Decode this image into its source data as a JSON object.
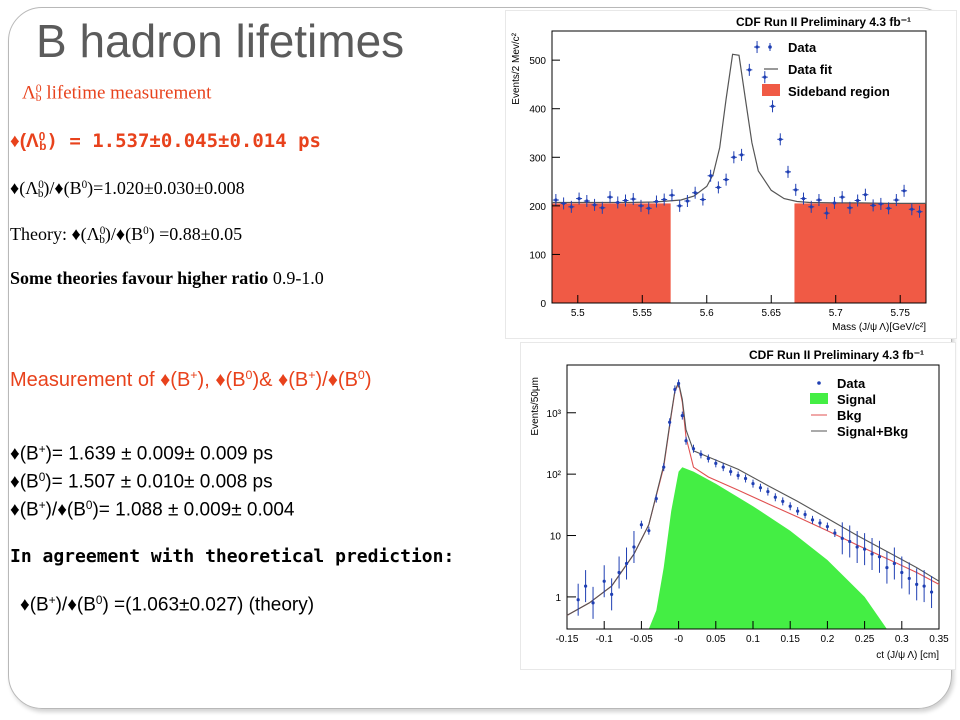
{
  "slide": {
    "title": "B hadron lifetimes",
    "g": "♦",
    "L": "Λ",
    "pm": "±",
    "lambda_heading": {
      "sym": "Λ",
      "sub": "0",
      "subb": "b",
      "text": " lifetime measurement"
    },
    "tau_lambda": {
      "prefix": "(",
      "sub_b": "b",
      "suffix": ") = 1.537±0.045±0.014 ps"
    },
    "ratio_line": {
      "p1": "(",
      "p2": ")/",
      "p3": "(B",
      "p4": ")=1.020±0.030±0.008"
    },
    "theory_line": {
      "lead": "Theory: ",
      "p1": "(",
      "p2": ")/",
      "p3": "(B",
      "p4": ") =0.88±0.05"
    },
    "some_theories": {
      "bold": "Some theories favour higher ratio",
      "value": " 0.9-1.0"
    },
    "measurement_line": {
      "a": "Measurement of ",
      "b": "(B",
      "c": "), ",
      "d": "(B",
      "e": ")& ",
      "f": "(B",
      "g": ")/",
      "h": "(B",
      "i": ")"
    },
    "bplus_line": {
      "a": "(B",
      "b": ")= 1.639 ± 0.009± 0.009 ps"
    },
    "b0_line": {
      "a": "(B",
      "b": ")= 1.507 ± 0.010± 0.008 ps"
    },
    "ratio_b_line": {
      "a": "(B",
      "b": ")/",
      "c": "(B",
      "d": ")= 1.088 ± 0.009± 0.004"
    },
    "agreement": "In agreement with theoretical prediction:",
    "theory_b_line": {
      "a": "(B",
      "b": ")/",
      "c": "(B",
      "d": ") =(1.063±0.027) (theory)"
    },
    "plus": "+",
    "zero": "0"
  },
  "chart_data": [
    {
      "type": "scatter",
      "title": "CDF Run II Preliminary 4.3 fb⁻¹",
      "xlabel": "Mass (J/ψ Λ)[GeV/c²]",
      "ylabel": "Events/2 Mev/c²",
      "xlim": [
        5.48,
        5.77
      ],
      "ylim": [
        0,
        560
      ],
      "xticks": [
        5.5,
        5.55,
        5.6,
        5.65,
        5.7,
        5.75
      ],
      "yticks": [
        0,
        100,
        200,
        300,
        400,
        500
      ],
      "grid": false,
      "legend_position": "top-right",
      "legend": [
        "Data",
        "Data fit",
        "Sideband region"
      ],
      "sideband_regions": [
        [
          5.48,
          5.572
        ],
        [
          5.668,
          5.77
        ]
      ],
      "sideband_level": 205,
      "series": [
        {
          "name": "Data",
          "x": [
            5.483,
            5.489,
            5.495,
            5.501,
            5.507,
            5.513,
            5.519,
            5.525,
            5.531,
            5.537,
            5.543,
            5.549,
            5.555,
            5.561,
            5.567,
            5.573,
            5.579,
            5.585,
            5.591,
            5.597,
            5.603,
            5.609,
            5.615,
            5.621,
            5.627,
            5.633,
            5.639,
            5.645,
            5.651,
            5.657,
            5.663,
            5.669,
            5.675,
            5.681,
            5.687,
            5.693,
            5.699,
            5.705,
            5.711,
            5.717,
            5.723,
            5.729,
            5.735,
            5.741,
            5.747,
            5.753,
            5.759,
            5.765
          ],
          "y": [
            212,
            205,
            198,
            215,
            210,
            202,
            196,
            218,
            207,
            211,
            214,
            200,
            195,
            209,
            213,
            222,
            200,
            210,
            227,
            213,
            262,
            238,
            254,
            300,
            305,
            480,
            527,
            465,
            405,
            337,
            270,
            233,
            215,
            198,
            212,
            185,
            206,
            218,
            196,
            211,
            223,
            201,
            204,
            195,
            212,
            231,
            193,
            188
          ]
        },
        {
          "name": "Data fit",
          "x": [
            5.48,
            5.5,
            5.52,
            5.54,
            5.56,
            5.58,
            5.59,
            5.6,
            5.605,
            5.61,
            5.615,
            5.62,
            5.625,
            5.63,
            5.635,
            5.64,
            5.65,
            5.66,
            5.67,
            5.68,
            5.7,
            5.72,
            5.74,
            5.77
          ],
          "y": [
            207,
            207,
            207,
            207,
            208,
            212,
            220,
            240,
            265,
            320,
            420,
            512,
            510,
            420,
            330,
            272,
            232,
            215,
            209,
            207,
            206,
            206,
            205,
            205
          ]
        }
      ]
    },
    {
      "type": "scatter",
      "title": "CDF Run II Preliminary 4.3 fb⁻¹",
      "xlabel": "ct (J/ψ Λ) [cm]",
      "ylabel": "Events/50μm",
      "xlim": [
        -0.15,
        0.35
      ],
      "ylim": [
        0.3,
        6000
      ],
      "yscale": "log",
      "xticks": [
        -0.15,
        -0.1,
        -0.05,
        -0.0,
        0.05,
        0.1,
        0.15,
        0.2,
        0.25,
        0.3,
        0.35
      ],
      "xtick_labels": [
        "-0.15",
        "-0.1",
        "-0.05",
        "-0",
        "0.05",
        "0.1",
        "0.15",
        "0.2",
        "0.25",
        "0.3",
        "0.35"
      ],
      "yticks": [
        1,
        10,
        100,
        1000
      ],
      "ytick_labels": [
        "1",
        "10",
        "10²",
        "10³"
      ],
      "grid": false,
      "legend_position": "top-right",
      "legend": [
        "Data",
        "Signal",
        "Bkg",
        "Signal+Bkg"
      ],
      "series": [
        {
          "name": "Data",
          "x": [
            -0.135,
            -0.125,
            -0.115,
            -0.1,
            -0.09,
            -0.08,
            -0.07,
            -0.06,
            -0.05,
            -0.04,
            -0.03,
            -0.02,
            -0.012,
            -0.005,
            0.0,
            0.005,
            0.01,
            0.02,
            0.03,
            0.04,
            0.05,
            0.06,
            0.07,
            0.08,
            0.09,
            0.1,
            0.11,
            0.12,
            0.13,
            0.14,
            0.15,
            0.16,
            0.17,
            0.18,
            0.19,
            0.2,
            0.21,
            0.22,
            0.23,
            0.24,
            0.25,
            0.26,
            0.27,
            0.28,
            0.29,
            0.3,
            0.31,
            0.32,
            0.33,
            0.34
          ],
          "y": [
            0.9,
            1.5,
            0.8,
            1.8,
            1.1,
            2.5,
            3.5,
            6.5,
            15,
            12,
            40,
            130,
            700,
            2400,
            3000,
            900,
            350,
            260,
            210,
            180,
            150,
            130,
            110,
            95,
            85,
            70,
            60,
            52,
            42,
            36,
            30,
            25,
            22,
            18,
            16,
            14,
            11,
            9,
            8,
            6.5,
            6,
            5,
            4.5,
            3,
            3.5,
            2.5,
            2,
            1.6,
            1.5,
            1.2
          ]
        },
        {
          "name": "Signal",
          "x": [
            -0.04,
            -0.03,
            -0.02,
            -0.01,
            0.0,
            0.005,
            0.02,
            0.05,
            0.1,
            0.15,
            0.2,
            0.25,
            0.28
          ],
          "y": [
            0.3,
            0.6,
            3,
            25,
            110,
            130,
            110,
            70,
            30,
            12,
            4,
            1,
            0.3
          ]
        },
        {
          "name": "Bkg",
          "x": [
            -0.15,
            -0.12,
            -0.09,
            -0.06,
            -0.04,
            -0.02,
            -0.01,
            -0.005,
            0.0,
            0.005,
            0.01,
            0.02,
            0.04,
            0.08,
            0.12,
            0.16,
            0.2,
            0.24,
            0.28,
            0.32,
            0.35
          ],
          "y": [
            0.5,
            0.8,
            1.5,
            5,
            15,
            130,
            900,
            2200,
            3000,
            1500,
            400,
            130,
            90,
            55,
            33,
            20,
            12,
            7,
            4.2,
            2.5,
            1.6
          ]
        },
        {
          "name": "Signal+Bkg",
          "x": [
            -0.15,
            -0.12,
            -0.09,
            -0.06,
            -0.04,
            -0.02,
            -0.01,
            -0.005,
            0.0,
            0.005,
            0.01,
            0.02,
            0.04,
            0.08,
            0.12,
            0.16,
            0.2,
            0.24,
            0.28,
            0.32,
            0.35
          ],
          "y": [
            0.5,
            0.8,
            1.5,
            5,
            15,
            140,
            950,
            2300,
            3100,
            1650,
            530,
            240,
            190,
            120,
            65,
            36,
            19,
            10,
            5.5,
            3,
            1.8
          ]
        }
      ]
    }
  ],
  "colors": {
    "title": "#5b5b5b",
    "accent_red": "#e8421c",
    "sideband_fill": "#f05a45",
    "signal_fill": "#44ee44",
    "bkg_line": "#e05050",
    "data_marker": "#1f3fb3"
  }
}
